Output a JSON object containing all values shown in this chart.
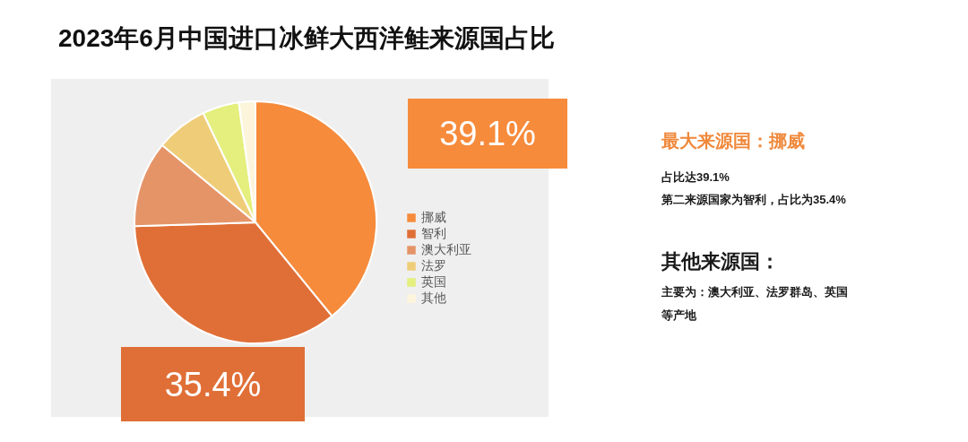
{
  "chart_data": {
    "type": "pie",
    "title": "2023年6月中国进口冰鲜大西洋鲑来源国占比",
    "categories": [
      "挪威",
      "智利",
      "澳大利亚",
      "法罗",
      "英国",
      "其他"
    ],
    "values": [
      39.1,
      35.4,
      11.5,
      6.9,
      4.9,
      2.2
    ],
    "colors": [
      "#f68b3c",
      "#e06f37",
      "#e59468",
      "#efcd78",
      "#e4ef7e",
      "#fcf5dc"
    ],
    "value_labels": [
      "39.1%",
      "35.4%",
      null,
      null,
      null,
      null
    ],
    "legend": "right",
    "annotations": [
      "最大来源国：挪威",
      "占比达39.1%",
      "第二来源国家为智利，占比为35.4%",
      "其他来源国：",
      "主要为：澳大利亚、法罗群岛、英国",
      "等产地"
    ]
  }
}
